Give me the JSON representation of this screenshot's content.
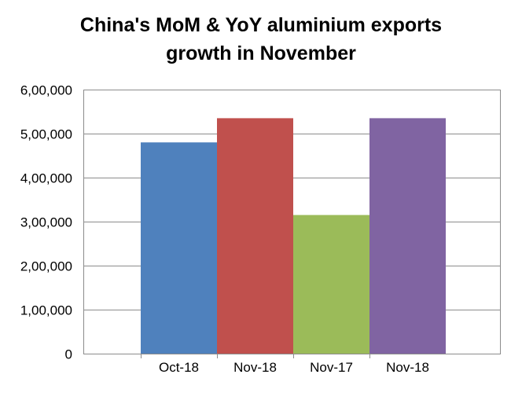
{
  "chart_data": {
    "type": "bar",
    "title_line1": "China's MoM & YoY aluminium exports",
    "title_line2": "growth in November",
    "categories": [
      "Oct-18",
      "Nov-18",
      "Nov-17",
      "Nov-18"
    ],
    "values": [
      480000,
      535000,
      315000,
      535000
    ],
    "colors": [
      "#4F81BD",
      "#C0504D",
      "#9BBB59",
      "#8064A2"
    ],
    "yticks": [
      "0",
      "1,00,000",
      "2,00,000",
      "3,00,000",
      "4,00,000",
      "5,00,000",
      "6,00,000"
    ],
    "ylim": [
      0,
      600000
    ],
    "grid": true,
    "legend": "none"
  }
}
